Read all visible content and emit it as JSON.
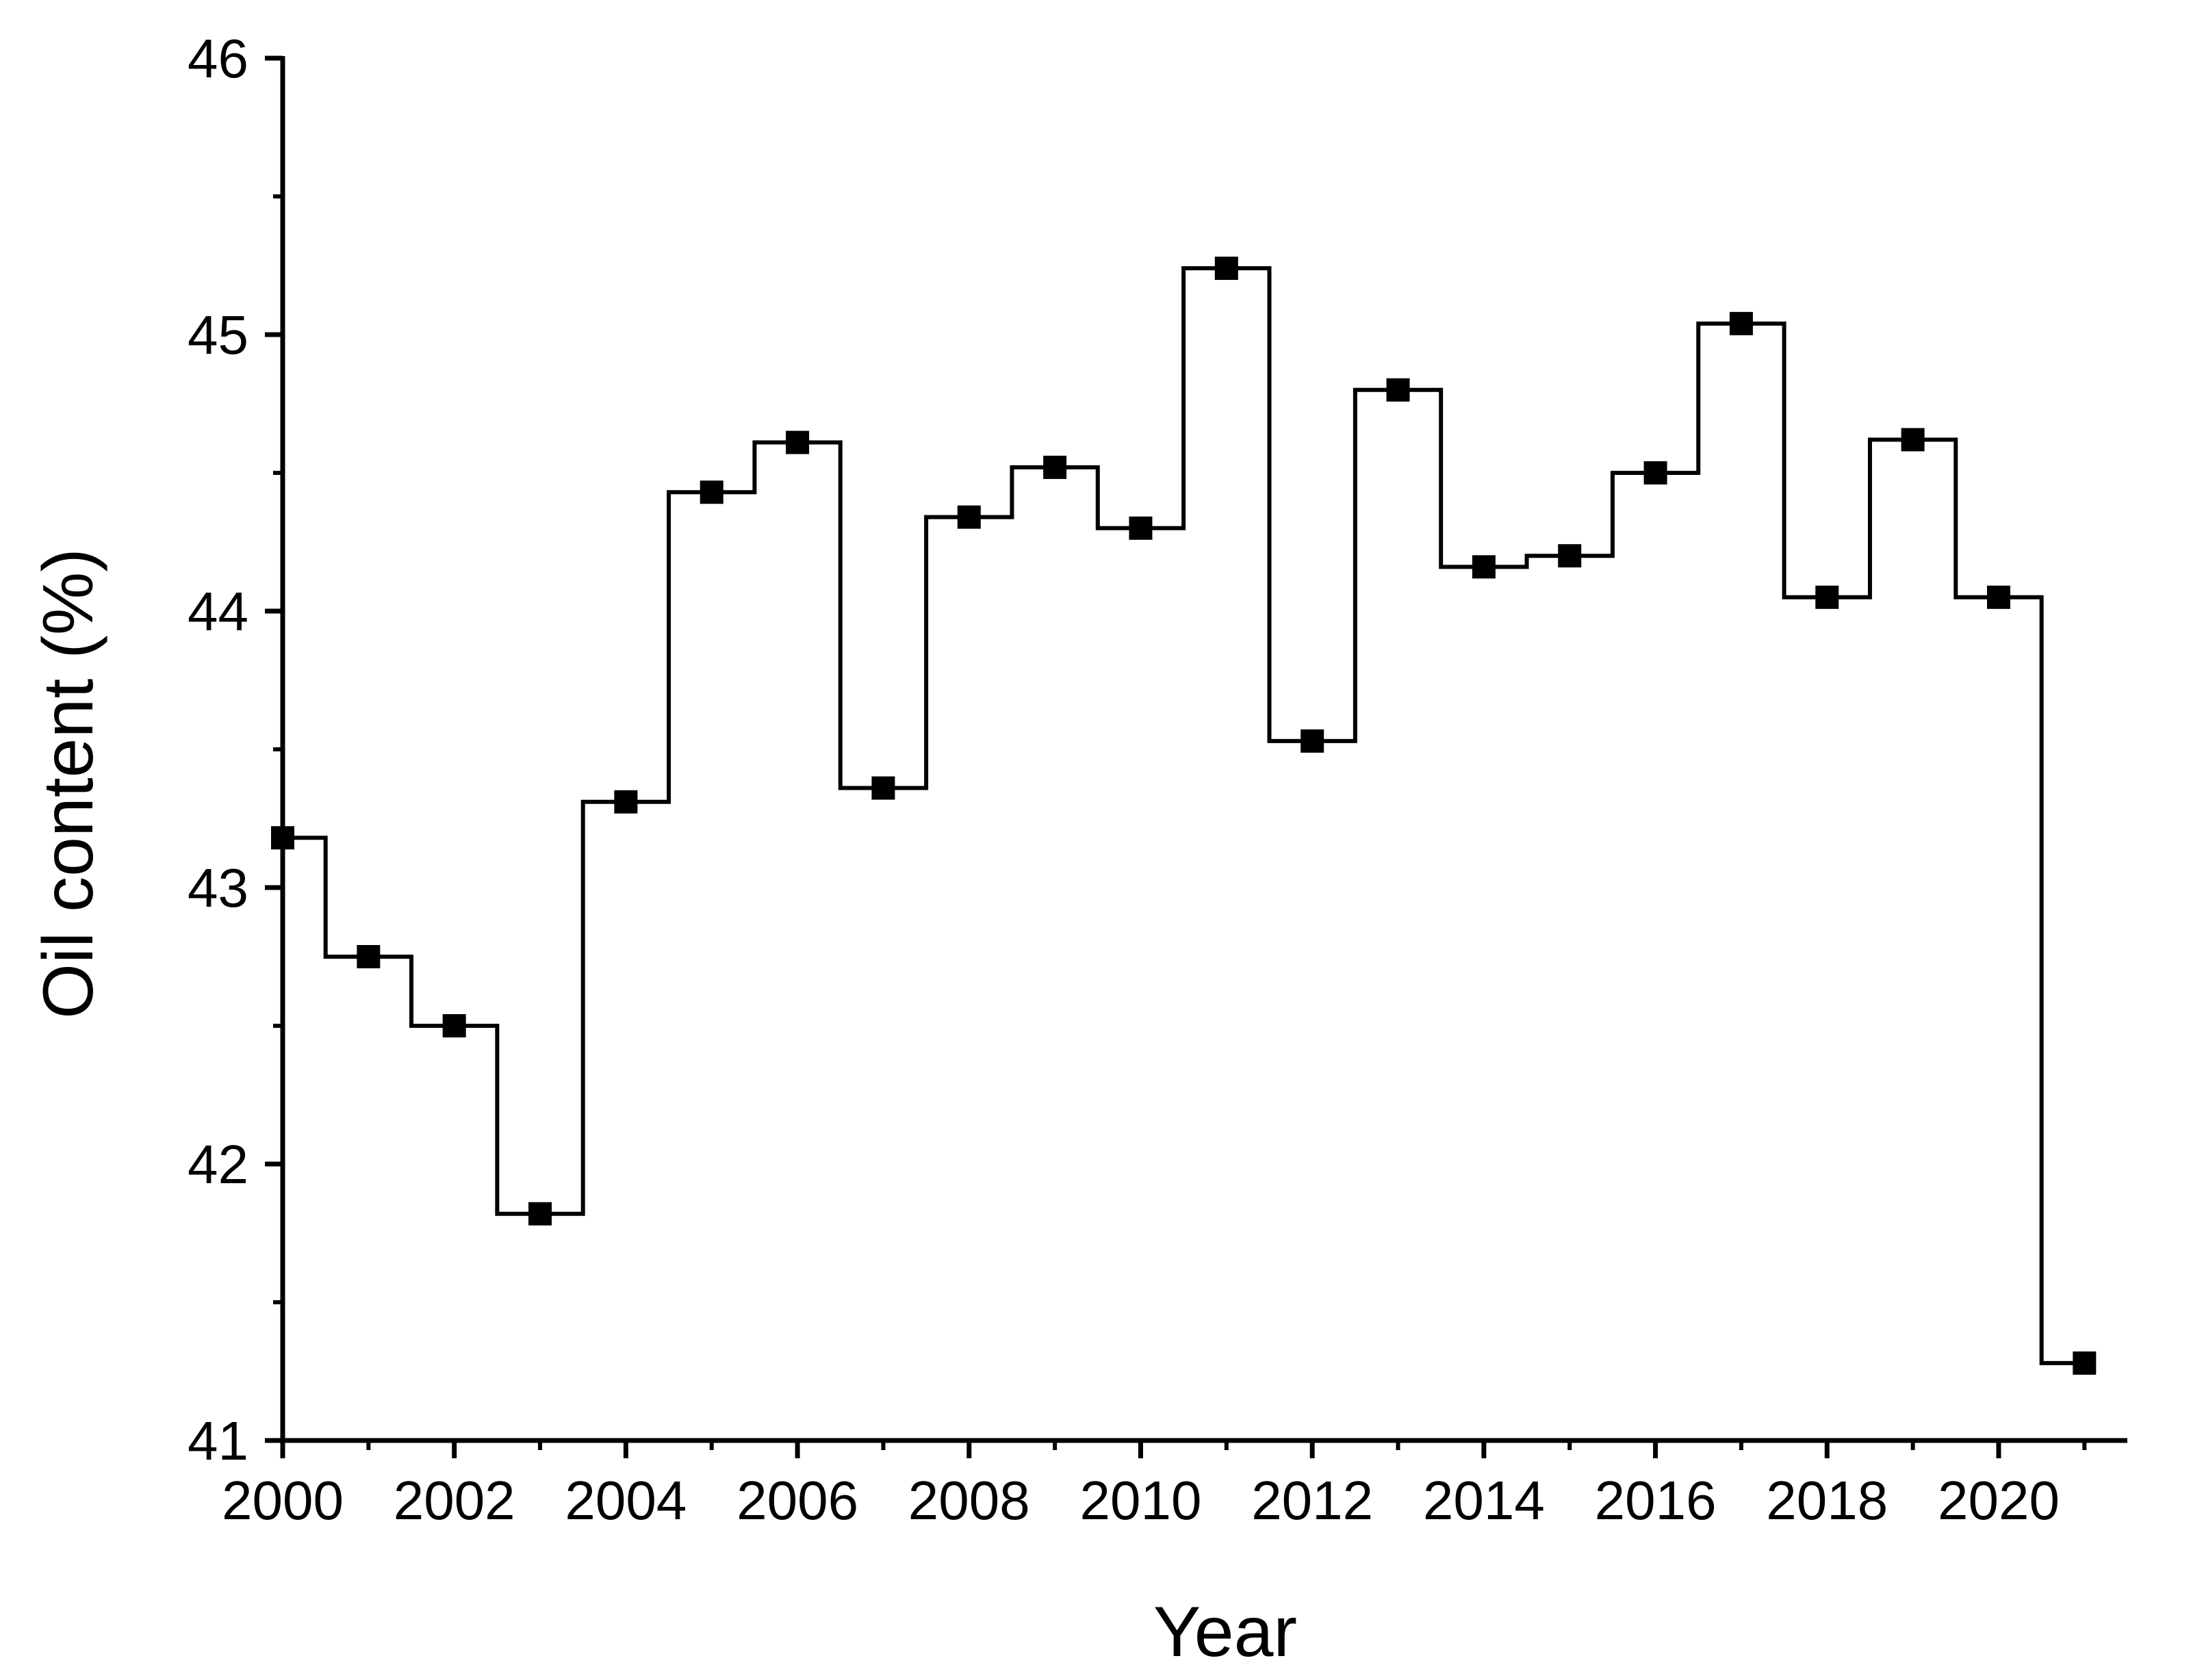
{
  "chart_data": {
    "type": "line",
    "step": "center",
    "xlabel": "Year",
    "ylabel": "Oil content (%)",
    "xlim": [
      2000,
      2021.5
    ],
    "ylim": [
      41,
      46
    ],
    "x_ticks": [
      2000,
      2002,
      2004,
      2006,
      2008,
      2010,
      2012,
      2014,
      2016,
      2018,
      2020
    ],
    "x_tick_labels": [
      "2000",
      "2002",
      "2004",
      "2006",
      "2008",
      "2010",
      "2012",
      "2014",
      "2016",
      "2018",
      "2020"
    ],
    "y_ticks": [
      41,
      42,
      43,
      44,
      45,
      46
    ],
    "y_tick_labels": [
      "41",
      "42",
      "43",
      "44",
      "45",
      "46"
    ],
    "x": [
      2000,
      2001,
      2002,
      2003,
      2004,
      2005,
      2006,
      2007,
      2008,
      2009,
      2010,
      2011,
      2012,
      2013,
      2014,
      2015,
      2016,
      2017,
      2018,
      2019,
      2020,
      2021
    ],
    "y": [
      43.18,
      42.75,
      42.5,
      41.82,
      43.31,
      44.43,
      44.61,
      43.36,
      44.34,
      44.52,
      44.3,
      45.24,
      43.53,
      44.8,
      44.16,
      44.2,
      44.5,
      45.04,
      44.05,
      44.62,
      44.05,
      41.28
    ],
    "marker": "square",
    "color": "#000000",
    "grid": false,
    "legend": "none"
  }
}
